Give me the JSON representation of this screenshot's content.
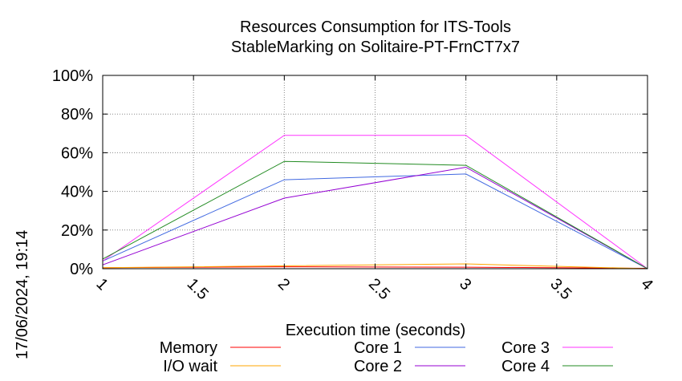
{
  "timestamp": "17/06/2024, 19:14",
  "chart_data": {
    "type": "line",
    "title": [
      "Resources Consumption for ITS-Tools",
      "StableMarking on Solitaire-PT-FrnCT7x7"
    ],
    "xlabel": "Execution time (seconds)",
    "ylabel": "",
    "xlim": [
      1,
      4
    ],
    "ylim": [
      0,
      100
    ],
    "xticks": [
      1,
      1.5,
      2,
      2.5,
      3,
      3.5,
      4
    ],
    "yticks": [
      0,
      20,
      40,
      60,
      80,
      100
    ],
    "ytick_labels": [
      "0%",
      "20%",
      "40%",
      "60%",
      "80%",
      "100%"
    ],
    "grid": true,
    "legend_position": "bottom",
    "x": [
      1,
      2,
      3,
      4
    ],
    "series": [
      {
        "name": "Memory",
        "color": "#ff0000",
        "values": [
          0.5,
          1.0,
          0.8,
          0.2
        ]
      },
      {
        "name": "I/O wait",
        "color": "#ffa500",
        "values": [
          0.5,
          1.5,
          2.5,
          0
        ]
      },
      {
        "name": "Core 1",
        "color": "#4169e1",
        "values": [
          4,
          46,
          49,
          0
        ]
      },
      {
        "name": "Core 2",
        "color": "#9400d3",
        "values": [
          2,
          36.5,
          52.5,
          0
        ]
      },
      {
        "name": "Core 3",
        "color": "#ff33ff",
        "values": [
          4,
          69,
          69,
          0
        ]
      },
      {
        "name": "Core 4",
        "color": "#228b22",
        "values": [
          5,
          55.5,
          53.5,
          0
        ]
      }
    ]
  }
}
